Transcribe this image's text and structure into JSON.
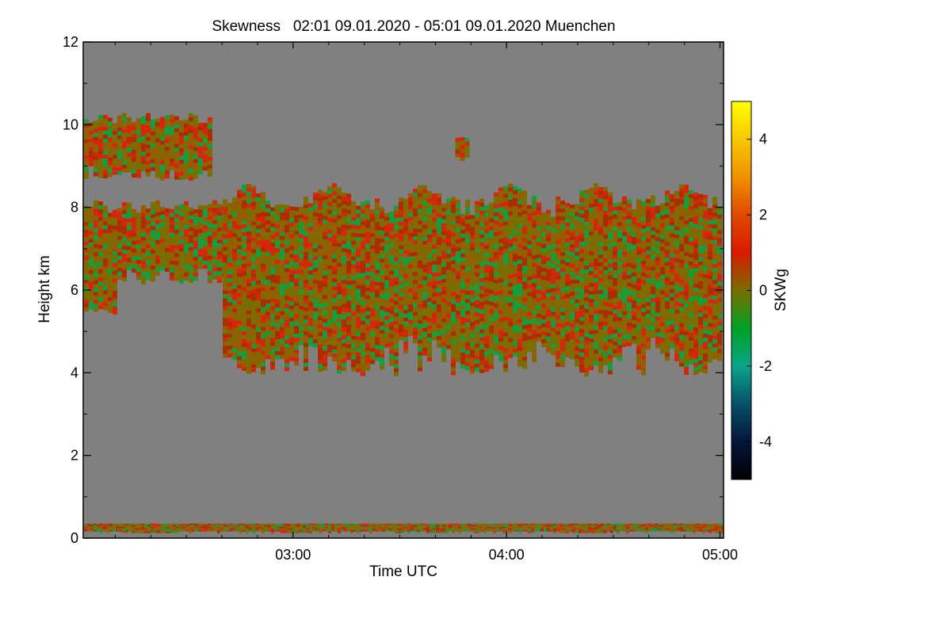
{
  "chart_data": {
    "type": "heatmap",
    "title": "Skewness   02:01 09.01.2020 - 05:01 09.01.2020 Muenchen",
    "xlabel": "Time UTC",
    "ylabel": "Height km",
    "x_range_hours": [
      2.0167,
      5.0167
    ],
    "xlim_labels": [
      "02:01",
      "05:01"
    ],
    "x_ticks": [
      {
        "hour": 3.0,
        "label": "03:00"
      },
      {
        "hour": 4.0,
        "label": "04:00"
      },
      {
        "hour": 5.0,
        "label": "05:00"
      }
    ],
    "ylim": [
      0,
      12
    ],
    "y_ticks": [
      0,
      2,
      4,
      6,
      8,
      10,
      12
    ],
    "y_tick_labels": [
      "0",
      "2",
      "4",
      "6",
      "8",
      "10",
      "12"
    ],
    "colorbar": {
      "label": "SKWg",
      "range": [
        -5,
        5
      ],
      "ticks": [
        -4,
        -2,
        0,
        2,
        4
      ],
      "tick_labels": [
        "-4",
        "-2",
        "0",
        "2",
        "4"
      ],
      "stops": [
        {
          "value": -5,
          "color": "#000000"
        },
        {
          "value": -4,
          "color": "#05153a"
        },
        {
          "value": -3,
          "color": "#07506a"
        },
        {
          "value": -2,
          "color": "#0aa58a"
        },
        {
          "value": -1,
          "color": "#00a024"
        },
        {
          "value": 0,
          "color": "#7a6e00"
        },
        {
          "value": 1,
          "color": "#d81a00"
        },
        {
          "value": 2,
          "color": "#e04a00"
        },
        {
          "value": 3,
          "color": "#f09000"
        },
        {
          "value": 4,
          "color": "#f8c800"
        },
        {
          "value": 5,
          "color": "#ffff00"
        }
      ]
    },
    "colors": {
      "missing": "#808080",
      "near_zero": "#7a6e00",
      "positive": "#d8240a",
      "negative": "#10a040"
    },
    "regions": [
      {
        "name": "upper-cirrus",
        "t_start": 2.02,
        "t_end": 2.62,
        "h_bottom": 8.7,
        "h_top": 10.3,
        "skew": "mixed"
      },
      {
        "name": "cirrus-layer-left",
        "t_start": 2.02,
        "t_end": 2.8,
        "h_bottom": 6.2,
        "h_top": 8.2,
        "skew": "mixed"
      },
      {
        "name": "cirrus-blob-left",
        "t_start": 2.02,
        "t_end": 2.18,
        "h_bottom": 5.5,
        "h_top": 7.0,
        "skew": "mixed"
      },
      {
        "name": "main-cloud-layer",
        "t_start": 2.67,
        "t_end": 5.02,
        "h_bottom": 4.0,
        "h_top": 8.6,
        "skew": "mixed"
      },
      {
        "name": "small-cloud-patch",
        "t_start": 3.76,
        "t_end": 3.82,
        "h_bottom": 9.2,
        "h_top": 9.7,
        "skew": "mixed"
      },
      {
        "name": "near-ground-noise",
        "t_start": 2.02,
        "t_end": 5.02,
        "h_bottom": 0.15,
        "h_top": 0.35,
        "skew": "mixed"
      }
    ]
  }
}
